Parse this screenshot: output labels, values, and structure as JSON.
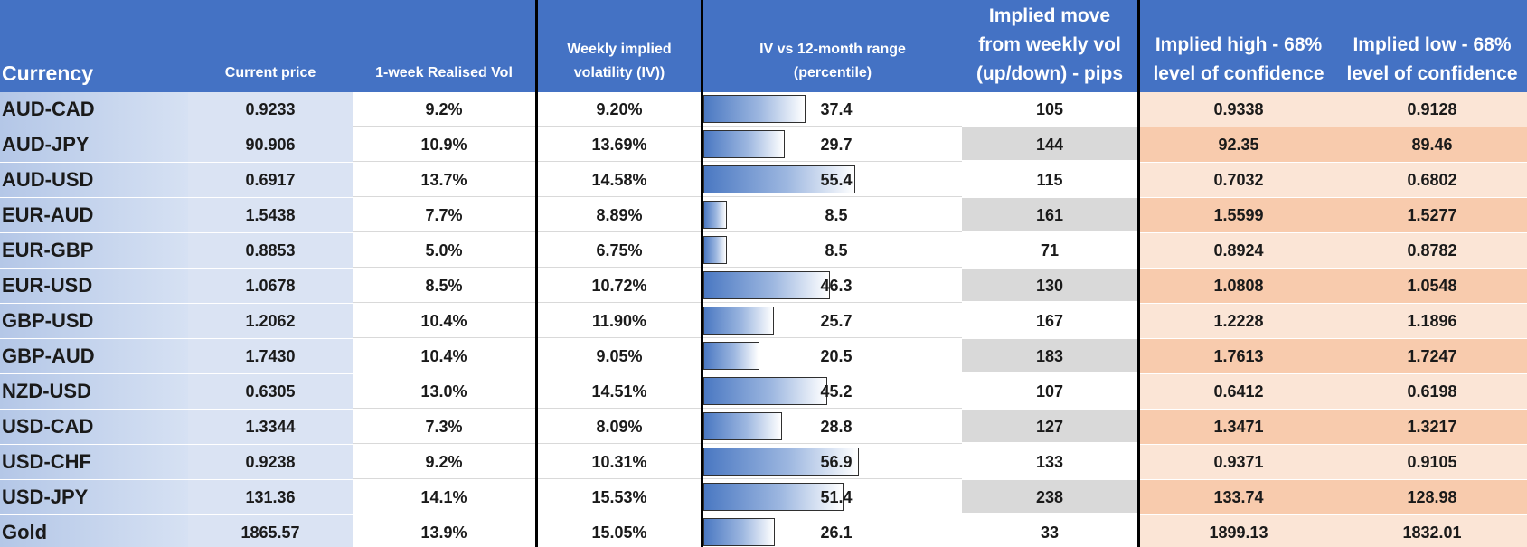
{
  "headers": {
    "currency": "Currency",
    "current_price": "Current price",
    "realised_vol": "1-week Realised Vol",
    "implied_vol": [
      "Weekly implied",
      "volatility (IV))"
    ],
    "iv_range": [
      "IV vs  12-month  range",
      "(percentile)"
    ],
    "implied_move": [
      "Implied move",
      "from weekly vol",
      "(up/down) - pips"
    ],
    "implied_high": [
      "Implied high -  68%",
      "level of confidence"
    ],
    "implied_low": [
      "Implied low -  68%",
      "level of confidence"
    ]
  },
  "colors": {
    "header_bg": "#4472c4",
    "price_bg": "#dae3f3",
    "high_low_light": "#fbe5d6",
    "high_low_dark": "#f8cbad",
    "pips_shaded": "#d9d9d9"
  },
  "rows": [
    {
      "currency": "AUD-CAD",
      "price": "0.9233",
      "rvol": "9.2%",
      "ivol": "9.20%",
      "pct": "37.4",
      "pct_value": 37.4,
      "pips": "105",
      "high": "0.9338",
      "low": "0.9128"
    },
    {
      "currency": "AUD-JPY",
      "price": "90.906",
      "rvol": "10.9%",
      "ivol": "13.69%",
      "pct": "29.7",
      "pct_value": 29.7,
      "pips": "144",
      "high": "92.35",
      "low": "89.46"
    },
    {
      "currency": "AUD-USD",
      "price": "0.6917",
      "rvol": "13.7%",
      "ivol": "14.58%",
      "pct": "55.4",
      "pct_value": 55.4,
      "pips": "115",
      "high": "0.7032",
      "low": "0.6802"
    },
    {
      "currency": "EUR-AUD",
      "price": "1.5438",
      "rvol": "7.7%",
      "ivol": "8.89%",
      "pct": "8.5",
      "pct_value": 8.5,
      "pips": "161",
      "high": "1.5599",
      "low": "1.5277"
    },
    {
      "currency": "EUR-GBP",
      "price": "0.8853",
      "rvol": "5.0%",
      "ivol": "6.75%",
      "pct": "8.5",
      "pct_value": 8.5,
      "pips": "71",
      "high": "0.8924",
      "low": "0.8782"
    },
    {
      "currency": "EUR-USD",
      "price": "1.0678",
      "rvol": "8.5%",
      "ivol": "10.72%",
      "pct": "46.3",
      "pct_value": 46.3,
      "pips": "130",
      "high": "1.0808",
      "low": "1.0548"
    },
    {
      "currency": "GBP-USD",
      "price": "1.2062",
      "rvol": "10.4%",
      "ivol": "11.90%",
      "pct": "25.7",
      "pct_value": 25.7,
      "pips": "167",
      "high": "1.2228",
      "low": "1.1896"
    },
    {
      "currency": "GBP-AUD",
      "price": "1.7430",
      "rvol": "10.4%",
      "ivol": "9.05%",
      "pct": "20.5",
      "pct_value": 20.5,
      "pips": "183",
      "high": "1.7613",
      "low": "1.7247"
    },
    {
      "currency": "NZD-USD",
      "price": "0.6305",
      "rvol": "13.0%",
      "ivol": "14.51%",
      "pct": "45.2",
      "pct_value": 45.2,
      "pips": "107",
      "high": "0.6412",
      "low": "0.6198"
    },
    {
      "currency": "USD-CAD",
      "price": "1.3344",
      "rvol": "7.3%",
      "ivol": "8.09%",
      "pct": "28.8",
      "pct_value": 28.8,
      "pips": "127",
      "high": "1.3471",
      "low": "1.3217"
    },
    {
      "currency": "USD-CHF",
      "price": "0.9238",
      "rvol": "9.2%",
      "ivol": "10.31%",
      "pct": "56.9",
      "pct_value": 56.9,
      "pips": "133",
      "high": "0.9371",
      "low": "0.9105"
    },
    {
      "currency": "USD-JPY",
      "price": "131.36",
      "rvol": "14.1%",
      "ivol": "15.53%",
      "pct": "51.4",
      "pct_value": 51.4,
      "pips": "238",
      "high": "133.74",
      "low": "128.98"
    },
    {
      "currency": "Gold",
      "price": "1865.57",
      "rvol": "13.9%",
      "ivol": "15.05%",
      "pct": "26.1",
      "pct_value": 26.1,
      "pips": "33",
      "high": "1899.13",
      "low": "1832.01"
    }
  ]
}
